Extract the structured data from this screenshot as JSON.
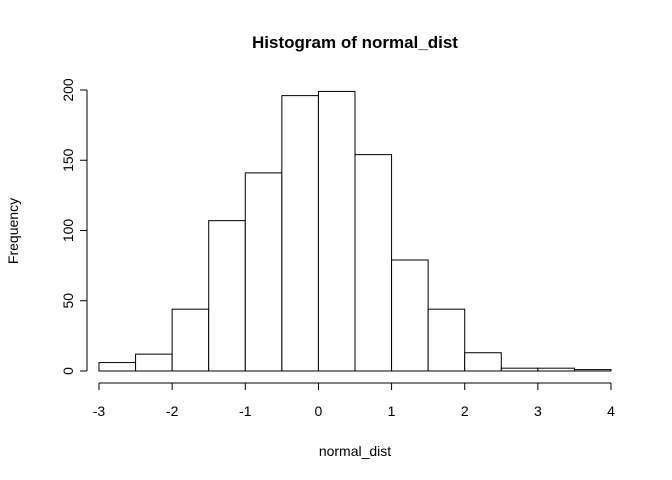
{
  "chart_data": {
    "type": "bar",
    "title": "Histogram of normal_dist",
    "xlabel": "normal_dist",
    "ylabel": "Frequency",
    "bins": [
      {
        "x0": -3.0,
        "x1": -2.5,
        "count": 6
      },
      {
        "x0": -2.5,
        "x1": -2.0,
        "count": 12
      },
      {
        "x0": -2.0,
        "x1": -1.5,
        "count": 44
      },
      {
        "x0": -1.5,
        "x1": -1.0,
        "count": 107
      },
      {
        "x0": -1.0,
        "x1": -0.5,
        "count": 141
      },
      {
        "x0": -0.5,
        "x1": 0.0,
        "count": 196
      },
      {
        "x0": 0.0,
        "x1": 0.5,
        "count": 199
      },
      {
        "x0": 0.5,
        "x1": 1.0,
        "count": 154
      },
      {
        "x0": 1.0,
        "x1": 1.5,
        "count": 79
      },
      {
        "x0": 1.5,
        "x1": 2.0,
        "count": 44
      },
      {
        "x0": 2.0,
        "x1": 2.5,
        "count": 13
      },
      {
        "x0": 2.5,
        "x1": 3.0,
        "count": 2
      },
      {
        "x0": 3.0,
        "x1": 3.5,
        "count": 2
      },
      {
        "x0": 3.5,
        "x1": 4.0,
        "count": 1
      }
    ],
    "xlim": [
      -3,
      4
    ],
    "ylim": [
      0,
      200
    ],
    "xticks": [
      -3,
      -2,
      -1,
      0,
      1,
      2,
      3,
      4
    ],
    "yticks": [
      0,
      50,
      100,
      150,
      200
    ],
    "grid": false,
    "legend": "none"
  }
}
